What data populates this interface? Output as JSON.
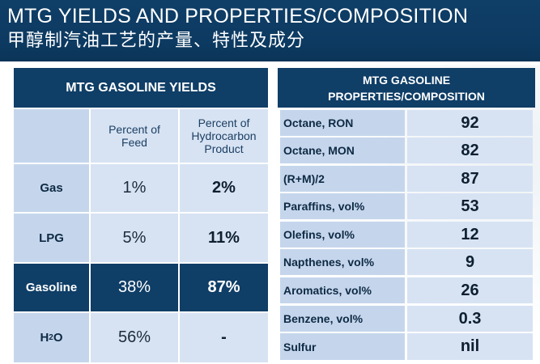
{
  "header": {
    "title_en": "MTG YIELDS AND PROPERTIES/COMPOSITION",
    "title_zh": "甲醇制汽油工艺的产量、特性及成分"
  },
  "yields": {
    "title": "MTG GASOLINE YIELDS",
    "col1": "Percent of Feed",
    "col2": "Percent of Hydrocarbon Product",
    "rows": [
      {
        "label": "Gas",
        "feed": "1%",
        "product": "2%"
      },
      {
        "label": "LPG",
        "feed": "5%",
        "product": "11%"
      },
      {
        "label": "Gasoline",
        "feed": "38%",
        "product": "87%"
      },
      {
        "label_main": "H",
        "label_sub": "2",
        "label_tail": "O",
        "feed": "56%",
        "product": "-"
      }
    ]
  },
  "properties": {
    "title_line1": "MTG GASOLINE",
    "title_line2": "PROPERTIES/COMPOSITION",
    "rows": [
      {
        "label": "Octane, RON",
        "value": "92"
      },
      {
        "label": "Octane, MON",
        "value": "82"
      },
      {
        "label": "(R+M)/2",
        "value": "87"
      },
      {
        "label": "Paraffins, vol%",
        "value": "53"
      },
      {
        "label": "Olefins, vol%",
        "value": "12"
      },
      {
        "label": "Napthenes, vol%",
        "value": "9"
      },
      {
        "label": "Aromatics, vol%",
        "value": "26"
      },
      {
        "label": "Benzene, vol%",
        "value": "0.3"
      },
      {
        "label": "Sulfur",
        "value": "nil"
      }
    ]
  },
  "colors": {
    "dark_blue": "#0f3e67",
    "light_cell": "#c9d9ee",
    "lighter_cell": "#d8e4f3"
  }
}
